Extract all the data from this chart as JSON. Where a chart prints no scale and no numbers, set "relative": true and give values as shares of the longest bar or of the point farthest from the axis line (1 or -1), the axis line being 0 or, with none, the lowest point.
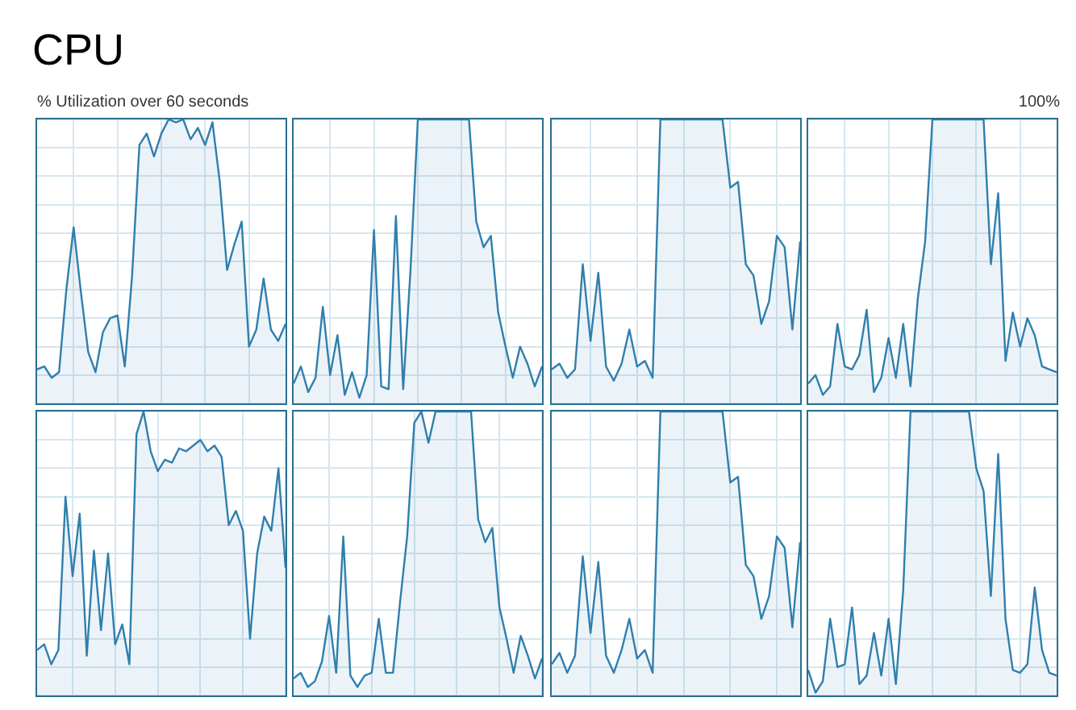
{
  "chart_data": [
    {
      "type": "area",
      "title": "CPU",
      "ylabel": "% Utilization over 60 seconds",
      "annotations": [
        "100%"
      ],
      "relative": true,
      "grid": true,
      "legend": false,
      "categories": [
        null,
        null,
        null,
        null,
        null,
        null,
        null,
        null,
        null,
        null,
        null,
        null,
        null,
        null,
        null,
        null,
        null,
        null,
        null,
        null,
        null,
        null,
        null,
        null,
        null,
        null,
        null,
        null,
        null,
        null,
        null,
        null,
        null,
        null,
        null
      ],
      "series": [
        {
          "color": "#2f7fad",
          "values": [
            0.12,
            0.13,
            0.09,
            0.11,
            0.4,
            0.62,
            0.39,
            0.18,
            0.11,
            0.25,
            0.3,
            0.31,
            0.13,
            0.45,
            0.91,
            0.95,
            0.87,
            0.95,
            1,
            0.99,
            1,
            0.93,
            0.97,
            0.91,
            0.99,
            0.78,
            0.47,
            0.56,
            0.64,
            0.2,
            0.26,
            0.44,
            0.26,
            0.22,
            0.28
          ]
        }
      ]
    },
    {
      "type": "area",
      "relative": true,
      "grid": true,
      "legend": false,
      "categories": [
        null,
        null,
        null,
        null,
        null,
        null,
        null,
        null,
        null,
        null,
        null,
        null,
        null,
        null,
        null,
        null,
        null,
        null,
        null,
        null,
        null,
        null,
        null,
        null,
        null,
        null,
        null,
        null,
        null,
        null,
        null,
        null,
        null,
        null,
        null
      ],
      "series": [
        {
          "color": "#2f7fad",
          "values": [
            0.07,
            0.13,
            0.04,
            0.09,
            0.34,
            0.1,
            0.24,
            0.03,
            0.11,
            0.02,
            0.1,
            0.61,
            0.06,
            0.05,
            0.66,
            0.05,
            0.47,
            1,
            1,
            1,
            1,
            1,
            1,
            1,
            1,
            0.64,
            0.55,
            0.59,
            0.32,
            0.2,
            0.09,
            0.2,
            0.14,
            0.06,
            0.13
          ]
        }
      ]
    },
    {
      "type": "area",
      "relative": true,
      "grid": true,
      "legend": false,
      "categories": [
        null,
        null,
        null,
        null,
        null,
        null,
        null,
        null,
        null,
        null,
        null,
        null,
        null,
        null,
        null,
        null,
        null,
        null,
        null,
        null,
        null,
        null,
        null,
        null,
        null,
        null,
        null,
        null,
        null,
        null,
        null,
        null,
        null
      ],
      "series": [
        {
          "color": "#2f7fad",
          "values": [
            0.12,
            0.14,
            0.09,
            0.12,
            0.49,
            0.22,
            0.46,
            0.13,
            0.08,
            0.14,
            0.26,
            0.13,
            0.15,
            0.09,
            1,
            1,
            1,
            1,
            1,
            1,
            1,
            1,
            1,
            0.76,
            0.78,
            0.49,
            0.45,
            0.28,
            0.36,
            0.59,
            0.55,
            0.26,
            0.57
          ]
        }
      ]
    },
    {
      "type": "area",
      "relative": true,
      "grid": true,
      "legend": false,
      "categories": [
        null,
        null,
        null,
        null,
        null,
        null,
        null,
        null,
        null,
        null,
        null,
        null,
        null,
        null,
        null,
        null,
        null,
        null,
        null,
        null,
        null,
        null,
        null,
        null,
        null,
        null,
        null,
        null,
        null,
        null,
        null,
        null,
        null,
        null,
        null
      ],
      "series": [
        {
          "color": "#2f7fad",
          "values": [
            0.07,
            0.1,
            0.03,
            0.06,
            0.28,
            0.13,
            0.12,
            0.17,
            0.33,
            0.04,
            0.09,
            0.23,
            0.09,
            0.28,
            0.06,
            0.37,
            0.57,
            1,
            1,
            1,
            1,
            1,
            1,
            1,
            1,
            0.49,
            0.74,
            0.15,
            0.32,
            0.2,
            0.3,
            0.24,
            0.13,
            0.12,
            0.11
          ]
        }
      ]
    },
    {
      "type": "area",
      "relative": true,
      "grid": true,
      "legend": false,
      "categories": [
        null,
        null,
        null,
        null,
        null,
        null,
        null,
        null,
        null,
        null,
        null,
        null,
        null,
        null,
        null,
        null,
        null,
        null,
        null,
        null,
        null,
        null,
        null,
        null,
        null,
        null,
        null,
        null,
        null,
        null,
        null,
        null,
        null,
        null,
        null,
        null
      ],
      "series": [
        {
          "color": "#2f7fad",
          "values": [
            0.16,
            0.18,
            0.11,
            0.16,
            0.7,
            0.42,
            0.64,
            0.14,
            0.51,
            0.23,
            0.5,
            0.18,
            0.25,
            0.11,
            0.92,
            1,
            0.86,
            0.79,
            0.83,
            0.82,
            0.87,
            0.86,
            0.88,
            0.9,
            0.86,
            0.88,
            0.84,
            0.6,
            0.65,
            0.58,
            0.2,
            0.5,
            0.63,
            0.58,
            0.8,
            0.45
          ]
        }
      ]
    },
    {
      "type": "area",
      "relative": true,
      "grid": true,
      "legend": false,
      "categories": [
        null,
        null,
        null,
        null,
        null,
        null,
        null,
        null,
        null,
        null,
        null,
        null,
        null,
        null,
        null,
        null,
        null,
        null,
        null,
        null,
        null,
        null,
        null,
        null,
        null,
        null,
        null,
        null,
        null,
        null,
        null,
        null,
        null,
        null,
        null,
        null
      ],
      "series": [
        {
          "color": "#2f7fad",
          "values": [
            0.06,
            0.08,
            0.03,
            0.05,
            0.12,
            0.28,
            0.08,
            0.56,
            0.07,
            0.03,
            0.07,
            0.08,
            0.27,
            0.08,
            0.08,
            0.33,
            0.56,
            0.96,
            1,
            0.89,
            1,
            1,
            1,
            1,
            1,
            1,
            0.62,
            0.54,
            0.59,
            0.31,
            0.2,
            0.08,
            0.21,
            0.14,
            0.06,
            0.13
          ]
        }
      ]
    },
    {
      "type": "area",
      "relative": true,
      "grid": true,
      "legend": false,
      "categories": [
        null,
        null,
        null,
        null,
        null,
        null,
        null,
        null,
        null,
        null,
        null,
        null,
        null,
        null,
        null,
        null,
        null,
        null,
        null,
        null,
        null,
        null,
        null,
        null,
        null,
        null,
        null,
        null,
        null,
        null,
        null,
        null,
        null
      ],
      "series": [
        {
          "color": "#2f7fad",
          "values": [
            0.11,
            0.15,
            0.08,
            0.14,
            0.49,
            0.22,
            0.47,
            0.14,
            0.08,
            0.16,
            0.27,
            0.13,
            0.16,
            0.08,
            1,
            1,
            1,
            1,
            1,
            1,
            1,
            1,
            1,
            0.75,
            0.77,
            0.46,
            0.42,
            0.27,
            0.35,
            0.56,
            0.52,
            0.24,
            0.54
          ]
        }
      ]
    },
    {
      "type": "area",
      "relative": true,
      "grid": true,
      "legend": false,
      "categories": [
        null,
        null,
        null,
        null,
        null,
        null,
        null,
        null,
        null,
        null,
        null,
        null,
        null,
        null,
        null,
        null,
        null,
        null,
        null,
        null,
        null,
        null,
        null,
        null,
        null,
        null,
        null,
        null,
        null,
        null,
        null,
        null,
        null,
        null,
        null
      ],
      "series": [
        {
          "color": "#2f7fad",
          "values": [
            0.09,
            0.01,
            0.05,
            0.27,
            0.1,
            0.11,
            0.31,
            0.04,
            0.07,
            0.22,
            0.07,
            0.27,
            0.04,
            0.37,
            1,
            1,
            1,
            1,
            1,
            1,
            1,
            1,
            1,
            0.8,
            0.72,
            0.35,
            0.85,
            0.27,
            0.09,
            0.08,
            0.11,
            0.38,
            0.16,
            0.08,
            0.07
          ]
        }
      ]
    }
  ]
}
